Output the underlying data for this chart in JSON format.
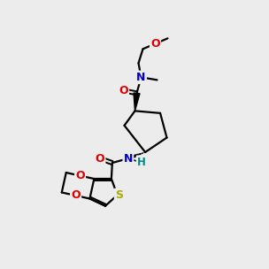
{
  "bg_color": "#ececec",
  "bond_color": "#000000",
  "bond_lw": 1.6,
  "atom_colors": {
    "O": "#dd0000",
    "N": "#0000cc",
    "S": "#aaaa00",
    "H": "#008888",
    "C": "#000000"
  },
  "figsize": [
    3.0,
    3.0
  ],
  "dpi": 100
}
